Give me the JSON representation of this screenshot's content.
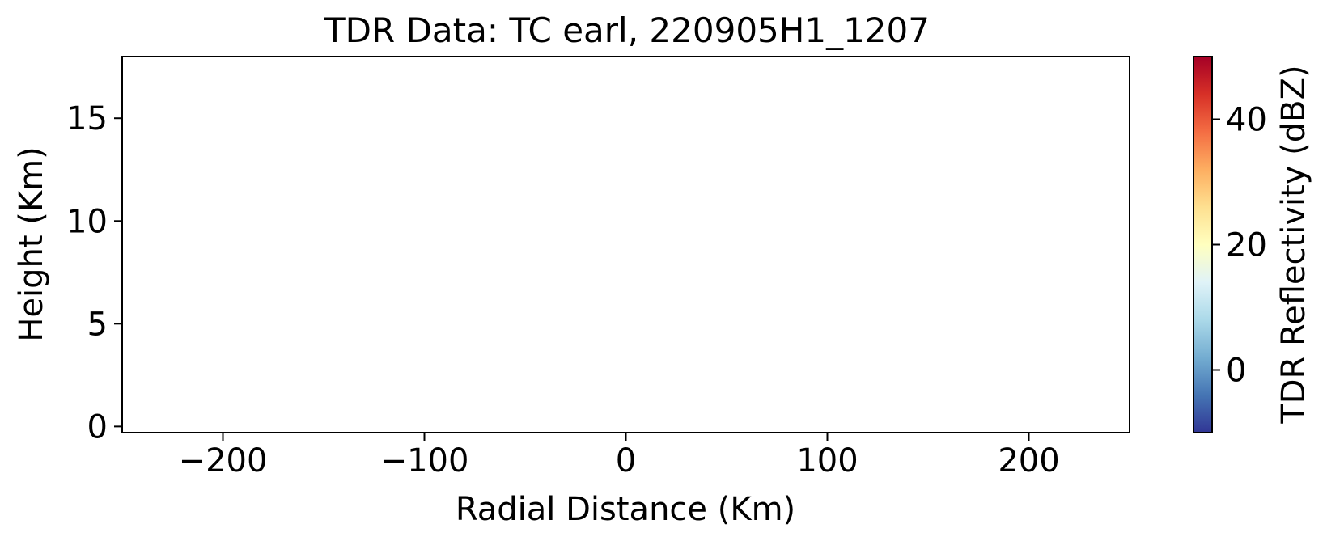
{
  "chart_data": {
    "type": "heatmap",
    "title": "TDR Data: TC earl, 220905H1_1207",
    "xlabel": "Radial Distance (Km)",
    "ylabel": "Height (Km)",
    "xlim": [
      -250,
      250
    ],
    "ylim": [
      -0.3,
      18
    ],
    "xticks": [
      -200,
      -100,
      0,
      100,
      200
    ],
    "xtick_labels": [
      "−200",
      "−100",
      "0",
      "100",
      "200"
    ],
    "yticks": [
      0,
      5,
      10,
      15
    ],
    "ytick_labels": [
      "0",
      "5",
      "10",
      "15"
    ],
    "grid": false,
    "values": [],
    "colorbar": {
      "label": "TDR Reflectivity (dBZ)",
      "range": [
        -10,
        50
      ],
      "ticks": [
        0,
        20,
        40
      ],
      "tick_labels": [
        "0",
        "20",
        "40"
      ],
      "colormap": "RdYlBu_r",
      "colors": [
        "#313695",
        "#4575b4",
        "#74add1",
        "#abd9e9",
        "#e0f3f8",
        "#ffffbf",
        "#fee090",
        "#fdae61",
        "#f46d43",
        "#d73027",
        "#a50026"
      ]
    }
  }
}
